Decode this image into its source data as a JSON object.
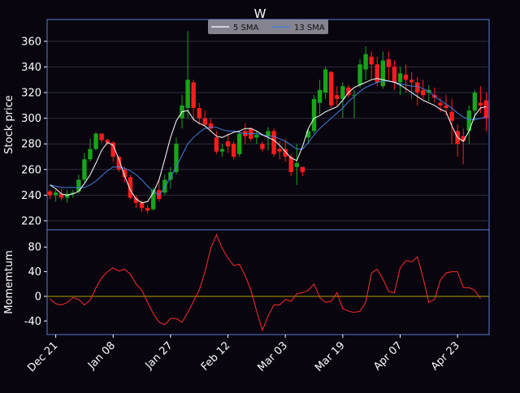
{
  "chart_data": [
    {
      "type": "candlestick",
      "title": "W",
      "ylabel": "Stock price",
      "ylim": [
        213,
        377
      ],
      "yticks": [
        220,
        240,
        260,
        280,
        300,
        320,
        340,
        360
      ],
      "xticks": [
        "Dec 21",
        "Jan 08",
        "Jan 27",
        "Feb 12",
        "Mar 03",
        "Mar 19",
        "Apr 07",
        "Apr 23"
      ],
      "grid": true,
      "legend_position": "top-center",
      "colors": {
        "background": "#08050f",
        "axes_edge": "#5b7bd6",
        "grid": "#2e2e3e",
        "text": "#ffffff",
        "up": "#17a51a",
        "down": "#ff1c1c",
        "sma5": "#ffffff",
        "sma13": "#3f7fe0",
        "legend_bg": "#9a9aa6",
        "legend_text": "#111111"
      },
      "series": [
        {
          "name": "5 SMA",
          "values": [
            248,
            245,
            241,
            240,
            241,
            243,
            249,
            256,
            265,
            275,
            281,
            279,
            268,
            255,
            244,
            237,
            234,
            235,
            242,
            252,
            268,
            285,
            298,
            305,
            306,
            299,
            296,
            294,
            290,
            286,
            285,
            287,
            289,
            290,
            292,
            292,
            290,
            287,
            285,
            283,
            279,
            274,
            269,
            267,
            278,
            292,
            300,
            302,
            305,
            307,
            309,
            314,
            320,
            324,
            326,
            328,
            330,
            331,
            330,
            329,
            328,
            326,
            323,
            320,
            317,
            314,
            312,
            310,
            307,
            305,
            294,
            285,
            282,
            290,
            302,
            308,
            309
          ]
        },
        {
          "name": "13 SMA",
          "values": [
            248,
            247,
            246,
            246,
            246,
            246,
            246,
            248,
            251,
            255,
            259,
            262,
            262,
            261,
            259,
            256,
            252,
            247,
            243,
            240,
            246,
            254,
            262,
            271,
            280,
            285,
            289,
            292,
            293,
            293,
            291,
            290,
            290,
            289,
            288,
            288,
            288,
            287,
            286,
            286,
            284,
            282,
            279,
            276,
            276,
            281,
            287,
            292,
            296,
            300,
            304,
            308,
            313,
            317,
            321,
            324,
            326,
            328,
            329,
            329,
            328,
            327,
            326,
            325,
            325,
            323,
            321,
            317,
            314,
            311,
            308,
            304,
            301,
            299,
            299,
            300,
            301
          ]
        },
        {
          "name": "candles",
          "ohlc": [
            [
              243,
              244,
              237,
              240
            ],
            [
              240,
              244,
              235,
              242
            ],
            [
              241,
              245,
              236,
              238
            ],
            [
              238,
              244,
              234,
              241
            ],
            [
              241,
              244,
              238,
              242
            ],
            [
              243,
              256,
              241,
              252
            ],
            [
              252,
              273,
              250,
              268
            ],
            [
              268,
              284,
              266,
              276
            ],
            [
              276,
              289,
              275,
              288
            ],
            [
              288,
              288,
              281,
              283
            ],
            [
              283,
              284,
              279,
              281
            ],
            [
              281,
              282,
              266,
              270
            ],
            [
              270,
              271,
              258,
              260
            ],
            [
              260,
              262,
              250,
              254
            ],
            [
              254,
              256,
              237,
              238
            ],
            [
              238,
              240,
              230,
              234
            ],
            [
              234,
              236,
              227,
              230
            ],
            [
              230,
              232,
              226,
              228
            ],
            [
              229,
              246,
              228,
              244
            ],
            [
              244,
              253,
              235,
              237
            ],
            [
              242,
              256,
              240,
              252
            ],
            [
              252,
              262,
              245,
              258
            ],
            [
              258,
              285,
              256,
              280
            ],
            [
              300,
              318,
              292,
              310
            ],
            [
              308,
              368,
              300,
              330
            ],
            [
              328,
              330,
              298,
              308
            ],
            [
              308,
              312,
              295,
              300
            ],
            [
              300,
              306,
              293,
              295
            ],
            [
              296,
              300,
              290,
              292
            ],
            [
              285,
              290,
              272,
              274
            ],
            [
              274,
              280,
              270,
              276
            ],
            [
              282,
              288,
              273,
              278
            ],
            [
              280,
              282,
              268,
              270
            ],
            [
              272,
              290,
              270,
              288
            ],
            [
              290,
              296,
              280,
              286
            ],
            [
              292,
              293,
              282,
              284
            ],
            [
              285,
              290,
              280,
              287
            ],
            [
              280,
              282,
              274,
              276
            ],
            [
              286,
              293,
              275,
              290
            ],
            [
              290,
              292,
              270,
              272
            ],
            [
              276,
              282,
              268,
              274
            ],
            [
              276,
              284,
              266,
              270
            ],
            [
              270,
              272,
              255,
              258
            ],
            [
              262,
              280,
              248,
              265
            ],
            [
              262,
              262,
              255,
              258
            ],
            [
              285,
              292,
              280,
              290
            ],
            [
              290,
              318,
              288,
              315
            ],
            [
              312,
              330,
              303,
              322
            ],
            [
              320,
              340,
              315,
              338
            ],
            [
              336,
              337,
              308,
              310
            ],
            [
              318,
              325,
              310,
              315
            ],
            [
              315,
              328,
              300,
              325
            ],
            [
              324,
              326,
              316,
              318
            ],
            [
              318,
              322,
              300,
              318
            ],
            [
              326,
              346,
              324,
              342
            ],
            [
              338,
              356,
              330,
              350
            ],
            [
              348,
              352,
              330,
              342
            ],
            [
              342,
              348,
              325,
              328
            ],
            [
              325,
              352,
              323,
              345
            ],
            [
              346,
              352,
              330,
              340
            ],
            [
              340,
              345,
              322,
              328
            ],
            [
              328,
              340,
              318,
              335
            ],
            [
              334,
              342,
              320,
              330
            ],
            [
              330,
              336,
              315,
              328
            ],
            [
              328,
              332,
              310,
              320
            ],
            [
              322,
              330,
              315,
              318
            ],
            [
              320,
              326,
              313,
              322
            ],
            [
              318,
              324,
              312,
              316
            ],
            [
              312,
              316,
              305,
              310
            ],
            [
              310,
              318,
              302,
              308
            ],
            [
              305,
              315,
              280,
              298
            ],
            [
              290,
              295,
              270,
              280
            ],
            [
              286,
              292,
              264,
              282
            ],
            [
              290,
              310,
              280,
              306
            ],
            [
              306,
              322,
              298,
              320
            ],
            [
              312,
              325,
              304,
              310
            ],
            [
              314,
              320,
              290,
              300
            ]
          ]
        }
      ]
    },
    {
      "type": "line",
      "ylabel": "Momemtum",
      "ylim": [
        -62,
        108
      ],
      "yticks": [
        -40,
        0,
        40,
        80
      ],
      "reference_line": 0,
      "colors": {
        "line": "#ff2b2b",
        "zero": "#b8a000"
      },
      "series": [
        {
          "name": "",
          "values": [
            -4,
            -12,
            -14,
            -10,
            -2,
            -5,
            -14,
            -6,
            14,
            30,
            40,
            46,
            41,
            44,
            36,
            20,
            10,
            -10,
            -28,
            -42,
            -46,
            -36,
            -36,
            -42,
            -26,
            -8,
            10,
            40,
            78,
            100,
            78,
            62,
            50,
            52,
            34,
            10,
            -24,
            -55,
            -32,
            -14,
            -14,
            -5,
            -8,
            4,
            6,
            10,
            20,
            -2,
            -10,
            -8,
            6,
            -20,
            -24,
            -26,
            -24,
            -10,
            38,
            44,
            28,
            8,
            6,
            46,
            58,
            56,
            64,
            30,
            -10,
            -5,
            26,
            38,
            40,
            40,
            14,
            14,
            10,
            -4
          ]
        }
      ]
    }
  ]
}
